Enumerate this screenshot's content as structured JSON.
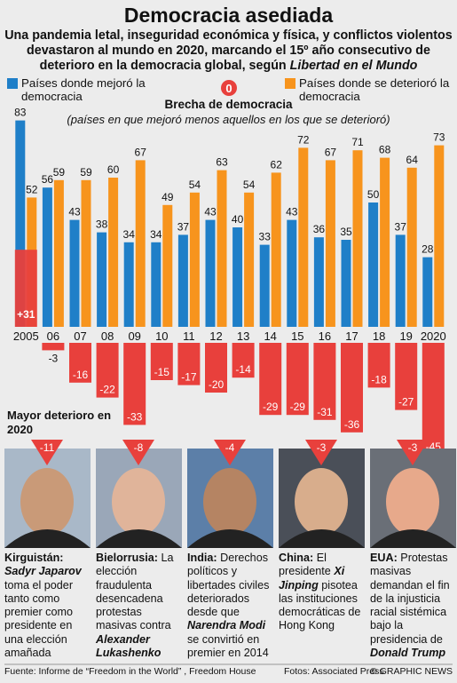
{
  "chart_data": {
    "type": "bar",
    "title": "Democracia asediada",
    "subtitle": [
      "Una pandemia letal, inseguridad económica y física, y conflictos violentos devastaron al mundo en 2020, marcando el 15º año consecutivo de deterioro en la democracia global, según ",
      "Libertad en el Mundo"
    ],
    "categories": [
      "2005",
      "06",
      "07",
      "08",
      "09",
      "10",
      "11",
      "12",
      "13",
      "14",
      "15",
      "16",
      "17",
      "18",
      "19",
      "2020"
    ],
    "series": [
      {
        "name": "Países donde mejoró la democracia",
        "color": "#1f7fc8",
        "values": [
          83,
          56,
          43,
          38,
          34,
          34,
          37,
          43,
          40,
          33,
          43,
          36,
          35,
          50,
          37,
          28
        ]
      },
      {
        "name": "Países donde se deterioró la democracia",
        "color": "#f7941d",
        "values": [
          52,
          59,
          59,
          60,
          67,
          49,
          54,
          63,
          54,
          62,
          72,
          67,
          71,
          68,
          64,
          73
        ]
      }
    ],
    "gap": {
      "title": "Brecha de democracia",
      "subtitle": "(países en que mejoró menos aquellos en los que se deterioró)",
      "color": "#e8403c",
      "zero_label": "0",
      "values": [
        31,
        -3,
        -16,
        -22,
        -33,
        -15,
        -17,
        -20,
        -14,
        -29,
        -29,
        -31,
        -36,
        -18,
        -27,
        -45
      ],
      "value_labels": [
        "+31",
        "-3",
        "-16",
        "-22",
        "-33",
        "-15",
        "-17",
        "-20",
        "-14",
        "-29",
        "-29",
        "-31",
        "-36",
        "-18",
        "-27",
        "-45"
      ]
    },
    "worst_title": "Mayor deterioro en 2020",
    "profiles": [
      {
        "country": "Kirguistán:",
        "value": -11,
        "before": "",
        "name": "Sadyr Japarov",
        "after": "toma el poder tanto como premier como presidente en una elección amañada"
      },
      {
        "country": "Bielorrusia:",
        "value": -8,
        "before": "La elección fraudulenta desencadena protestas masivas contra",
        "name": "Alexander Lukashenko",
        "after": ""
      },
      {
        "country": "India:",
        "value": -4,
        "before": "Derechos políticos y libertades civiles deteriorados desde que",
        "name": "Narendra Modi",
        "after": "se convirtió en premier en 2014"
      },
      {
        "country": "China:",
        "value": -3,
        "before": "El presidente",
        "name": "Xi Jinping",
        "after": "pisotea las instituciones democráticas de Hong Kong"
      },
      {
        "country": "EUA:",
        "value": -3,
        "before": "Protestas masivas demandan el fin de la injusticia racial sistémica bajo la presidencia de",
        "name": "Donald Trump",
        "after": ""
      }
    ],
    "source": "Fuente: Informe de “Freedom in the World” , Freedom House",
    "photo_credit": "Fotos: Associated Press",
    "copyright": "© GRAPHIC NEWS"
  }
}
